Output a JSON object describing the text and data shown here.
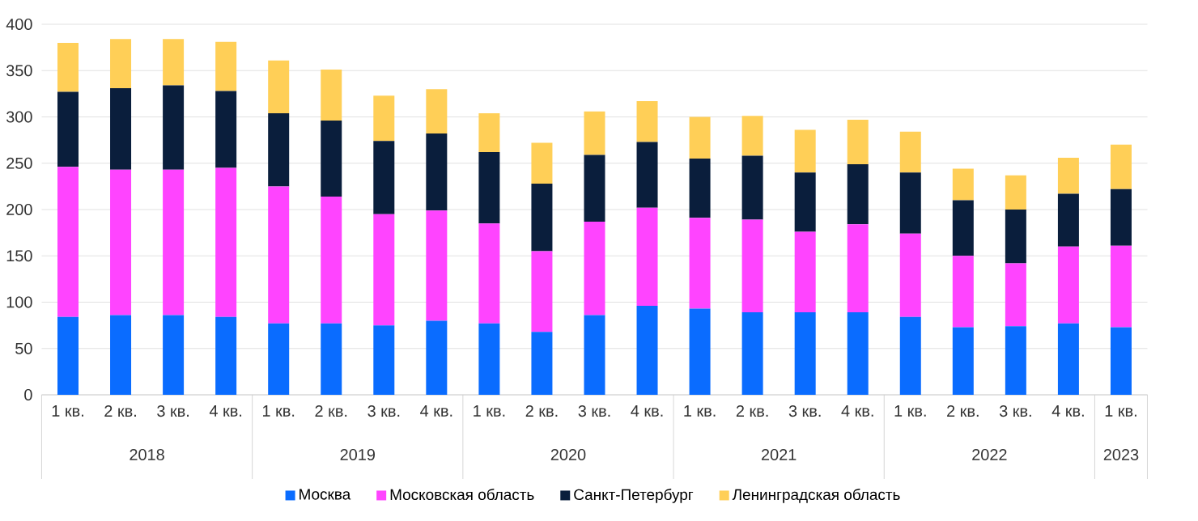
{
  "chart_data": {
    "type": "bar",
    "stacked": true,
    "categories": [
      "1 кв.",
      "2 кв.",
      "3 кв.",
      "4 кв.",
      "1 кв.",
      "2 кв.",
      "3 кв.",
      "4 кв.",
      "1 кв.",
      "2 кв.",
      "3 кв.",
      "4 кв.",
      "1 кв.",
      "2 кв.",
      "3 кв.",
      "4 кв.",
      "1 кв.",
      "2 кв.",
      "3 кв.",
      "4 кв.",
      "1 кв."
    ],
    "annotations": [
      "2018",
      "2019",
      "2020",
      "2021",
      "2022",
      "2023"
    ],
    "series": [
      {
        "name": "Москва",
        "color": "#0a6cff",
        "values": [
          84,
          86,
          86,
          84,
          77,
          77,
          75,
          80,
          77,
          68,
          86,
          96,
          93,
          89,
          89,
          89,
          84,
          73,
          74,
          77,
          73
        ]
      },
      {
        "name": "Московская область",
        "color": "#ff44ff",
        "values": [
          162,
          157,
          157,
          161,
          148,
          137,
          120,
          119,
          108,
          87,
          101,
          106,
          98,
          100,
          87,
          95,
          90,
          77,
          68,
          83,
          88
        ]
      },
      {
        "name": "Санкт-Петербург",
        "color": "#0a1e3c",
        "values": [
          81,
          88,
          91,
          83,
          79,
          82,
          79,
          83,
          77,
          73,
          72,
          71,
          64,
          69,
          64,
          65,
          66,
          60,
          58,
          57,
          61
        ]
      },
      {
        "name": "Ленинградская область",
        "color": "#ffcf57",
        "values": [
          53,
          53,
          50,
          53,
          57,
          55,
          49,
          48,
          42,
          44,
          47,
          44,
          45,
          43,
          46,
          48,
          44,
          34,
          37,
          39,
          48
        ]
      }
    ],
    "ylim": [
      0,
      400
    ],
    "yticks": [
      0,
      50,
      100,
      150,
      200,
      250,
      300,
      350,
      400
    ],
    "grid": "y",
    "legend": "bottom"
  }
}
